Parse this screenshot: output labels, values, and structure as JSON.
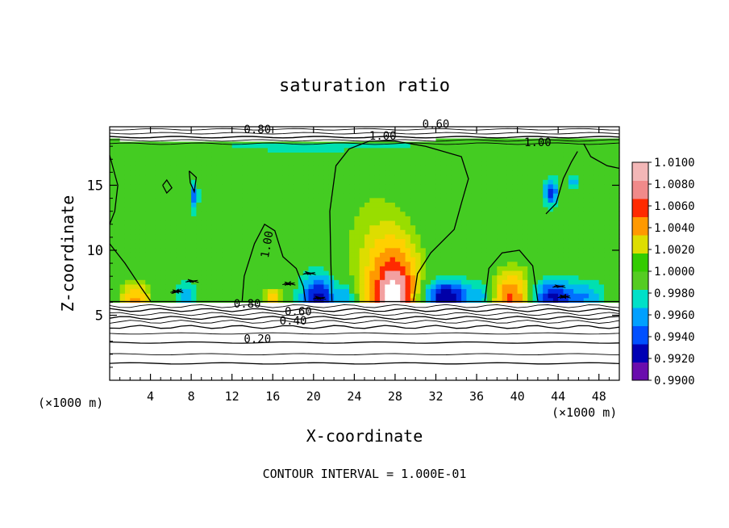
{
  "chart_data": {
    "type": "heatmap",
    "title": "saturation ratio",
    "xlabel": "X-coordinate",
    "ylabel": "Z-coordinate",
    "xunit": "(×1000 m)",
    "yunit": "(×1000 m)",
    "xlim": [
      0,
      50
    ],
    "ylim": [
      0,
      19.5
    ],
    "xticks": [
      4,
      8,
      12,
      16,
      20,
      24,
      28,
      32,
      36,
      40,
      44,
      48
    ],
    "yticks": [
      5,
      10,
      15
    ],
    "footer": "CONTOUR INTERVAL = 1.000E-01",
    "colorbar": {
      "levels": [
        0.99,
        0.992,
        0.994,
        0.996,
        0.998,
        1.0,
        1.002,
        1.004,
        1.006,
        1.008,
        1.01
      ],
      "labels": [
        "0.9900",
        "0.9920",
        "0.9940",
        "0.9960",
        "0.9980",
        "1.0000",
        "1.0020",
        "1.0040",
        "1.0060",
        "1.0080",
        "1.0100"
      ],
      "colors": [
        "#6a0dad",
        "#0000b4",
        "#0050ff",
        "#00a0ff",
        "#00e0c8",
        "#55cc22",
        "#33cc00",
        "#dddd00",
        "#ff9900",
        "#ff2a00",
        "#f08a8a",
        "#f3b7b7"
      ]
    },
    "contour_labels": [
      {
        "text": "0.20",
        "x": 14.5,
        "y": 2.9
      },
      {
        "text": "0.40",
        "x": 18.0,
        "y": 4.3
      },
      {
        "text": "0.60",
        "x": 18.5,
        "y": 5.0
      },
      {
        "text": "0.80",
        "x": 13.5,
        "y": 5.6
      },
      {
        "text": "0.80",
        "x": 14.5,
        "y": 19.0
      },
      {
        "text": "1.00",
        "x": 26.8,
        "y": 18.5
      },
      {
        "text": "0.60",
        "x": 32.0,
        "y": 19.4
      },
      {
        "text": "1.00",
        "x": 42.0,
        "y": 18.0
      },
      {
        "text": "1.00",
        "x": 15.8,
        "y": 10.4
      }
    ]
  }
}
